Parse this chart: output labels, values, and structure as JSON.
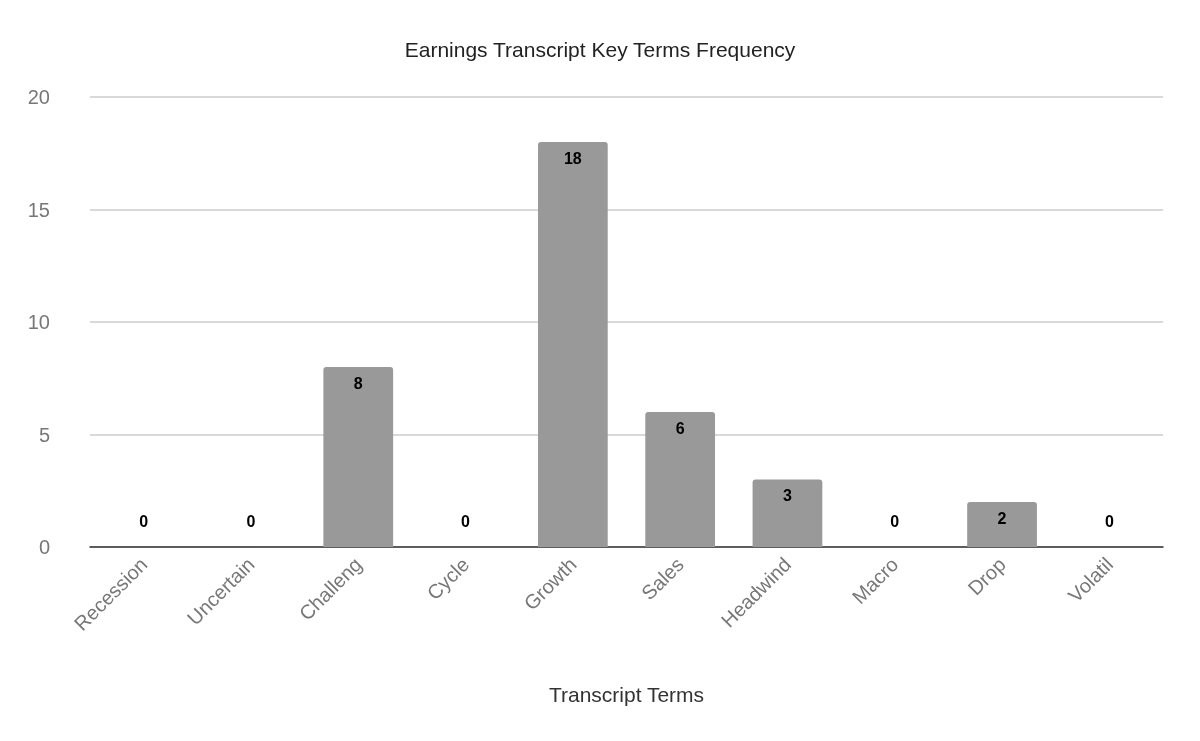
{
  "chart_data": {
    "type": "bar",
    "title": "Earnings Transcript Key Terms Frequency",
    "xlabel": "Transcript Terms",
    "categories": [
      "Recession",
      "Uncertain",
      "Challeng",
      "Cycle",
      "Growth",
      "Sales",
      "Headwind",
      "Macro",
      "Drop",
      "Volatil"
    ],
    "values": [
      0,
      0,
      8,
      0,
      18,
      6,
      3,
      0,
      2,
      0
    ],
    "color": "#999999",
    "ylim": [
      0,
      20
    ],
    "yticks": [
      0,
      5,
      10,
      15,
      20
    ],
    "grid": "y",
    "data_labels": true
  }
}
